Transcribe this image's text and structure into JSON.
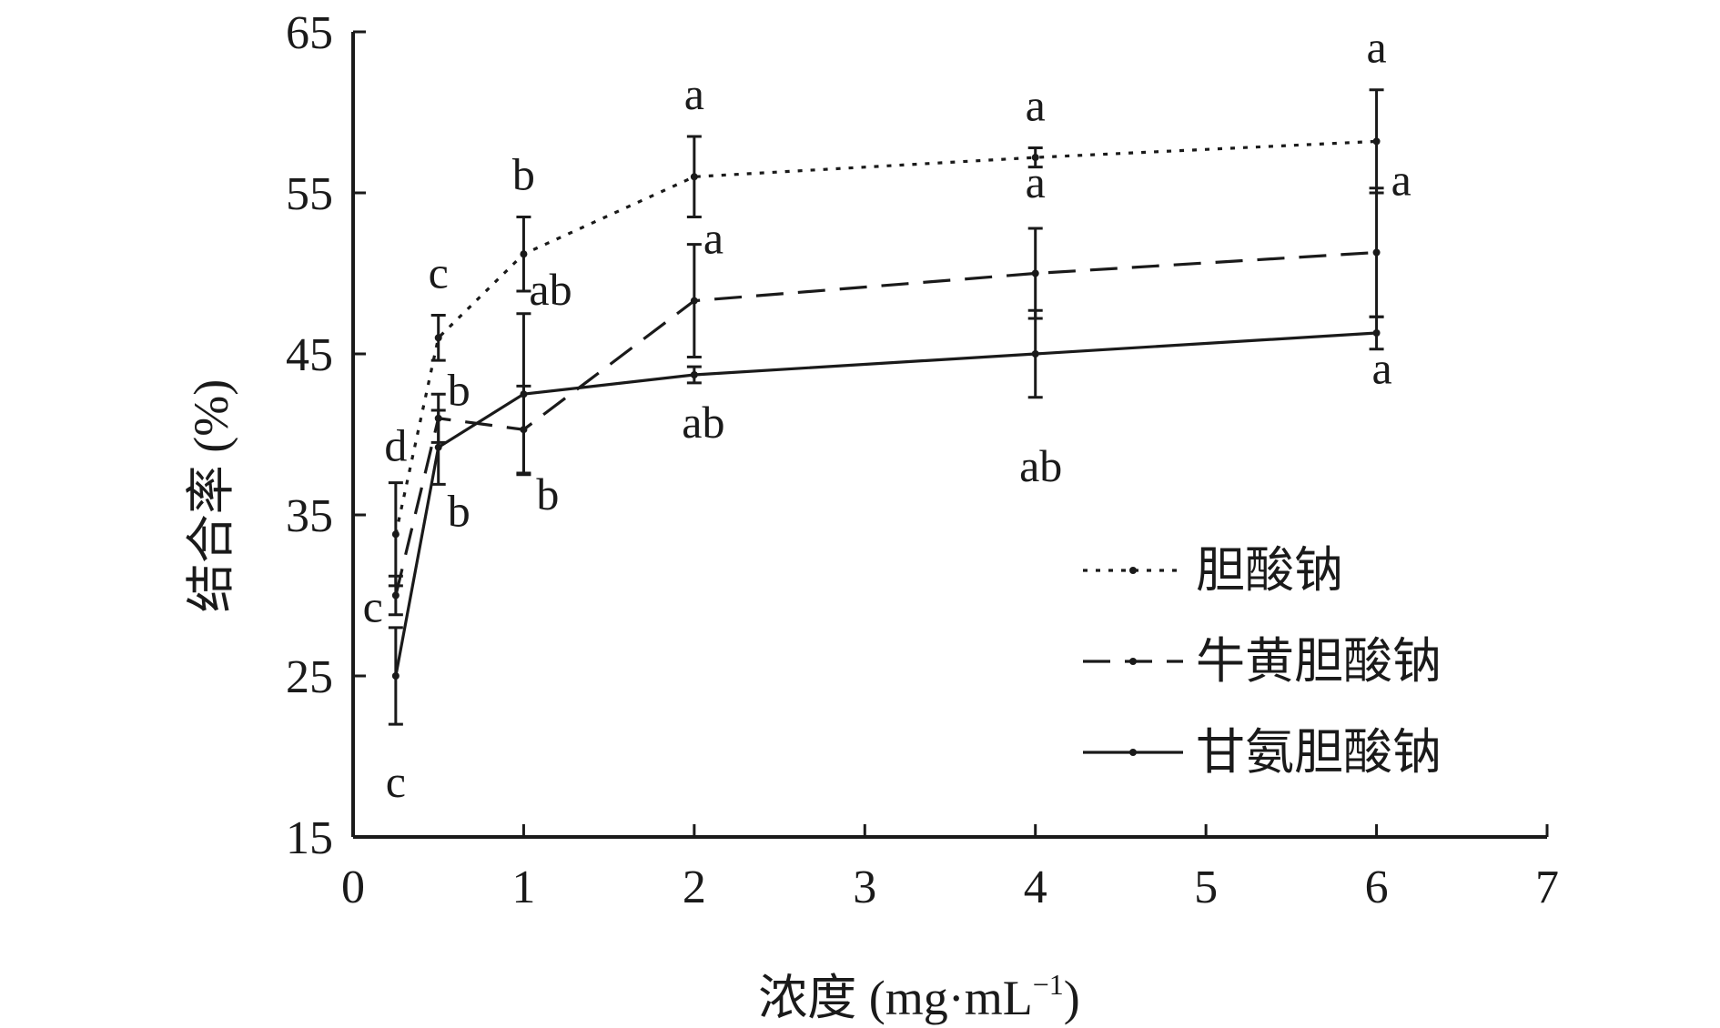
{
  "chart_data": {
    "type": "line",
    "xlabel": "浓度 (mg·mL",
    "xlabel_sup": "−1",
    "xlabel_end": ")",
    "ylabel": "结合率 (%)",
    "xlim": [
      0,
      7
    ],
    "ylim": [
      15,
      65
    ],
    "x_ticks": [
      "0",
      "1",
      "2",
      "3",
      "4",
      "5",
      "6",
      "7"
    ],
    "y_ticks": [
      "15",
      "25",
      "35",
      "45",
      "55",
      "65"
    ],
    "grid": false,
    "legend_position": "bottom-right",
    "series": [
      {
        "name": "胆酸钠",
        "line_style": "dotted",
        "color": "#1a1a1a",
        "x": [
          0.25,
          0.5,
          1,
          2,
          4,
          6
        ],
        "y": [
          33.8,
          46.0,
          51.2,
          56.0,
          57.2,
          58.2
        ],
        "err": [
          3.2,
          1.4,
          2.3,
          2.5,
          0.6,
          3.2
        ],
        "labels": [
          "d",
          "c",
          "b",
          "a",
          "a",
          "a"
        ]
      },
      {
        "name": "牛黄胆酸钠",
        "line_style": "dashed",
        "color": "#1a1a1a",
        "x": [
          0.25,
          0.5,
          1,
          2,
          4,
          6
        ],
        "y": [
          30.0,
          41.0,
          40.3,
          48.3,
          50.0,
          51.3
        ],
        "err": [
          1.2,
          1.5,
          2.7,
          3.5,
          2.8,
          4.0
        ],
        "labels": [
          "c",
          "b",
          "b",
          "a",
          "a",
          "a"
        ]
      },
      {
        "name": "甘氨胆酸钠",
        "line_style": "solid",
        "color": "#1a1a1a",
        "x": [
          0.25,
          0.5,
          1,
          2,
          4,
          6
        ],
        "y": [
          25.0,
          39.2,
          42.5,
          43.7,
          45.0,
          46.3
        ],
        "err": [
          3.0,
          2.3,
          5.0,
          0.5,
          2.7,
          1.0
        ],
        "labels": [
          "c",
          "b",
          "ab",
          "ab",
          "ab",
          "a"
        ]
      }
    ]
  }
}
